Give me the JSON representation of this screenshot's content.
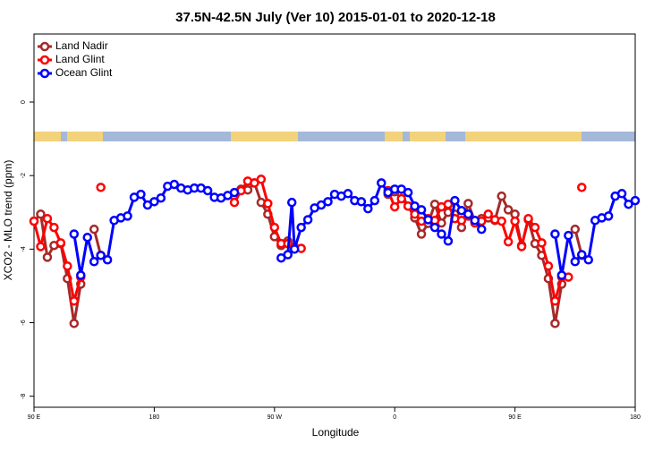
{
  "chart_data": {
    "type": "line",
    "title": "37.5N-42.5N July (Ver 10)   2015-01-01 to 2020-12-18",
    "x_label": "Longitude",
    "y_label": "XCO2 - MLO trend (ppm)",
    "xlim": [
      90,
      540
    ],
    "ylim": [
      -8.3,
      1.85
    ],
    "xticks": [
      {
        "value": 90,
        "label": "90 E"
      },
      180,
      {
        "value": 270,
        "label": "90 W"
      },
      {
        "value": 360,
        "label": "0"
      },
      {
        "value": 450,
        "label": "90 E"
      },
      {
        "value": 540,
        "label": "180"
      }
    ],
    "yticks": [
      0,
      -2,
      -4,
      -6,
      -8
    ],
    "legend": "top-left",
    "series": [
      {
        "name": "Land Nadir",
        "color": "#a52a2a",
        "x": [
          90,
          95,
          100,
          105,
          110,
          115,
          120,
          125,
          null,
          135,
          140,
          null,
          240,
          245,
          250,
          255,
          260,
          265,
          270,
          275,
          280,
          285,
          null,
          355,
          360,
          365,
          370,
          375,
          380,
          385,
          390,
          395,
          400,
          405,
          410,
          415,
          420,
          425,
          430,
          435,
          440,
          445,
          450,
          455,
          460,
          465,
          470,
          475,
          480,
          485,
          null,
          495,
          500
        ],
        "values": [
          -3.24,
          -3.05,
          -4.22,
          -3.9,
          -3.85,
          -4.8,
          -6.02,
          -4.95,
          null,
          -3.46,
          -4.17,
          null,
          -2.56,
          -2.37,
          -2.39,
          -2.2,
          -2.73,
          -3.05,
          -3.66,
          -3.9,
          -3.78,
          -3.95,
          null,
          -2.51,
          -2.44,
          -2.51,
          -2.83,
          -3.15,
          -3.59,
          -3.3,
          -2.78,
          -3.29,
          -3.0,
          -3.05,
          -3.41,
          -2.76,
          -3.24,
          -3.17,
          -3.15,
          -3.22,
          -2.56,
          -2.93,
          -3.05,
          -3.9,
          -3.2,
          -3.85,
          -4.17,
          -4.8,
          -6.02,
          -4.95,
          null,
          -3.46,
          -4.17
        ]
      },
      {
        "name": "Land Glint",
        "color": "#ff0000",
        "x": [
          90,
          95,
          100,
          105,
          110,
          115,
          120,
          125,
          null,
          140,
          null,
          240,
          245,
          250,
          255,
          260,
          265,
          270,
          275,
          280,
          285,
          290,
          null,
          355,
          360,
          365,
          370,
          375,
          380,
          385,
          390,
          395,
          400,
          405,
          410,
          415,
          420,
          425,
          430,
          435,
          440,
          445,
          450,
          455,
          460,
          465,
          470,
          475,
          480,
          485,
          490,
          null,
          500
        ],
        "values": [
          -3.24,
          -3.93,
          -3.17,
          -3.41,
          -3.83,
          -4.46,
          -5.41,
          -4.76,
          null,
          -2.32,
          null,
          -2.73,
          -2.41,
          -2.15,
          -2.2,
          -2.1,
          -2.76,
          -3.41,
          -3.85,
          -3.85,
          -3.95,
          -3.98,
          null,
          -2.41,
          -2.85,
          -2.63,
          -2.83,
          -3.05,
          -3.24,
          -3.17,
          -3.22,
          -2.85,
          -2.78,
          -3.17,
          -3.22,
          -3.1,
          -3.29,
          -3.24,
          -3.05,
          -3.2,
          -3.24,
          -3.8,
          -3.24,
          -3.93,
          -3.17,
          -3.41,
          -3.83,
          -4.46,
          -5.41,
          -4.76,
          -4.76,
          null,
          -2.32
        ]
      },
      {
        "name": "Ocean Glint",
        "color": "#0000ff",
        "x": [
          120,
          125,
          130,
          135,
          140,
          145,
          150,
          155,
          160,
          165,
          170,
          175,
          180,
          185,
          190,
          195,
          200,
          205,
          210,
          215,
          220,
          225,
          230,
          235,
          240,
          null,
          275,
          280,
          283,
          285,
          290,
          295,
          300,
          305,
          310,
          315,
          320,
          325,
          330,
          335,
          340,
          345,
          350,
          355,
          360,
          365,
          370,
          375,
          380,
          385,
          390,
          395,
          400,
          405,
          410,
          415,
          420,
          425,
          null,
          480,
          485,
          490,
          495,
          500,
          505,
          510,
          515,
          520,
          525,
          530,
          535,
          540
        ],
        "values": [
          -3.59,
          -4.71,
          -3.68,
          -4.34,
          -4.17,
          -4.29,
          -3.22,
          -3.15,
          -3.1,
          -2.59,
          -2.51,
          -2.8,
          -2.71,
          -2.61,
          -2.29,
          -2.24,
          -2.34,
          -2.39,
          -2.34,
          -2.34,
          -2.41,
          -2.59,
          -2.61,
          -2.54,
          -2.46,
          null,
          -4.24,
          -4.15,
          -2.73,
          -4.0,
          -3.41,
          -3.2,
          -2.88,
          -2.8,
          -2.71,
          -2.51,
          -2.56,
          -2.49,
          -2.68,
          -2.71,
          -2.9,
          -2.68,
          -2.2,
          -2.46,
          -2.37,
          -2.37,
          -2.46,
          -2.83,
          -2.93,
          -3.2,
          -3.41,
          -3.59,
          -3.78,
          -2.68,
          -2.95,
          -3.05,
          -3.22,
          -3.46,
          null,
          -3.59,
          -4.71,
          -3.63,
          -4.34,
          -4.15,
          -4.29,
          -3.22,
          -3.15,
          -3.1,
          -2.56,
          -2.49,
          -2.78,
          -2.68
        ]
      }
    ]
  }
}
